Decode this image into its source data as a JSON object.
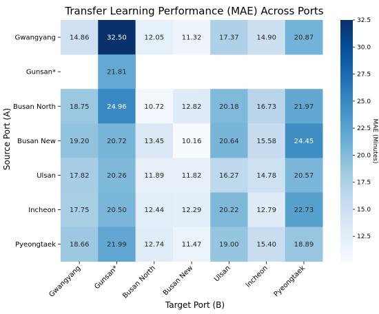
{
  "chart_data": {
    "type": "heatmap",
    "title": "Transfer Learning Performance (MAE) Across Ports",
    "xlabel": "Target Port (B)",
    "ylabel": "Source Port (A)",
    "x_categories": [
      "Gwangyang",
      "Gunsan*",
      "Busan North",
      "Busan New",
      "Ulsan",
      "Incheon",
      "Pyeongtaek"
    ],
    "y_categories": [
      "Gwangyang",
      "Gunsan*",
      "Busan North",
      "Busan New",
      "Ulsan",
      "Incheon",
      "Pyeongtaek"
    ],
    "values": [
      [
        14.86,
        32.5,
        12.05,
        11.32,
        17.37,
        14.9,
        20.87
      ],
      [
        null,
        21.81,
        null,
        null,
        null,
        null,
        null
      ],
      [
        18.75,
        24.96,
        10.72,
        12.82,
        20.18,
        16.73,
        21.97
      ],
      [
        19.2,
        20.72,
        13.45,
        10.16,
        20.64,
        15.58,
        24.45
      ],
      [
        17.82,
        20.26,
        11.89,
        11.82,
        16.27,
        14.78,
        20.57
      ],
      [
        17.75,
        20.5,
        12.44,
        12.29,
        20.22,
        12.79,
        22.73
      ],
      [
        18.66,
        21.99,
        12.74,
        11.47,
        19.0,
        15.4,
        18.89
      ]
    ],
    "colormap": "Blues",
    "vmin": 10.16,
    "vmax": 32.5,
    "colorbar": {
      "label": "MAE (Minutes)",
      "ticks": [
        12.5,
        15.0,
        17.5,
        20.0,
        22.5,
        25.0,
        27.5,
        30.0,
        32.5
      ],
      "tick_labels": [
        "12.5",
        "15.0",
        "17.5",
        "20.0",
        "22.5",
        "25.0",
        "27.5",
        "30.0",
        "32.5"
      ]
    }
  }
}
